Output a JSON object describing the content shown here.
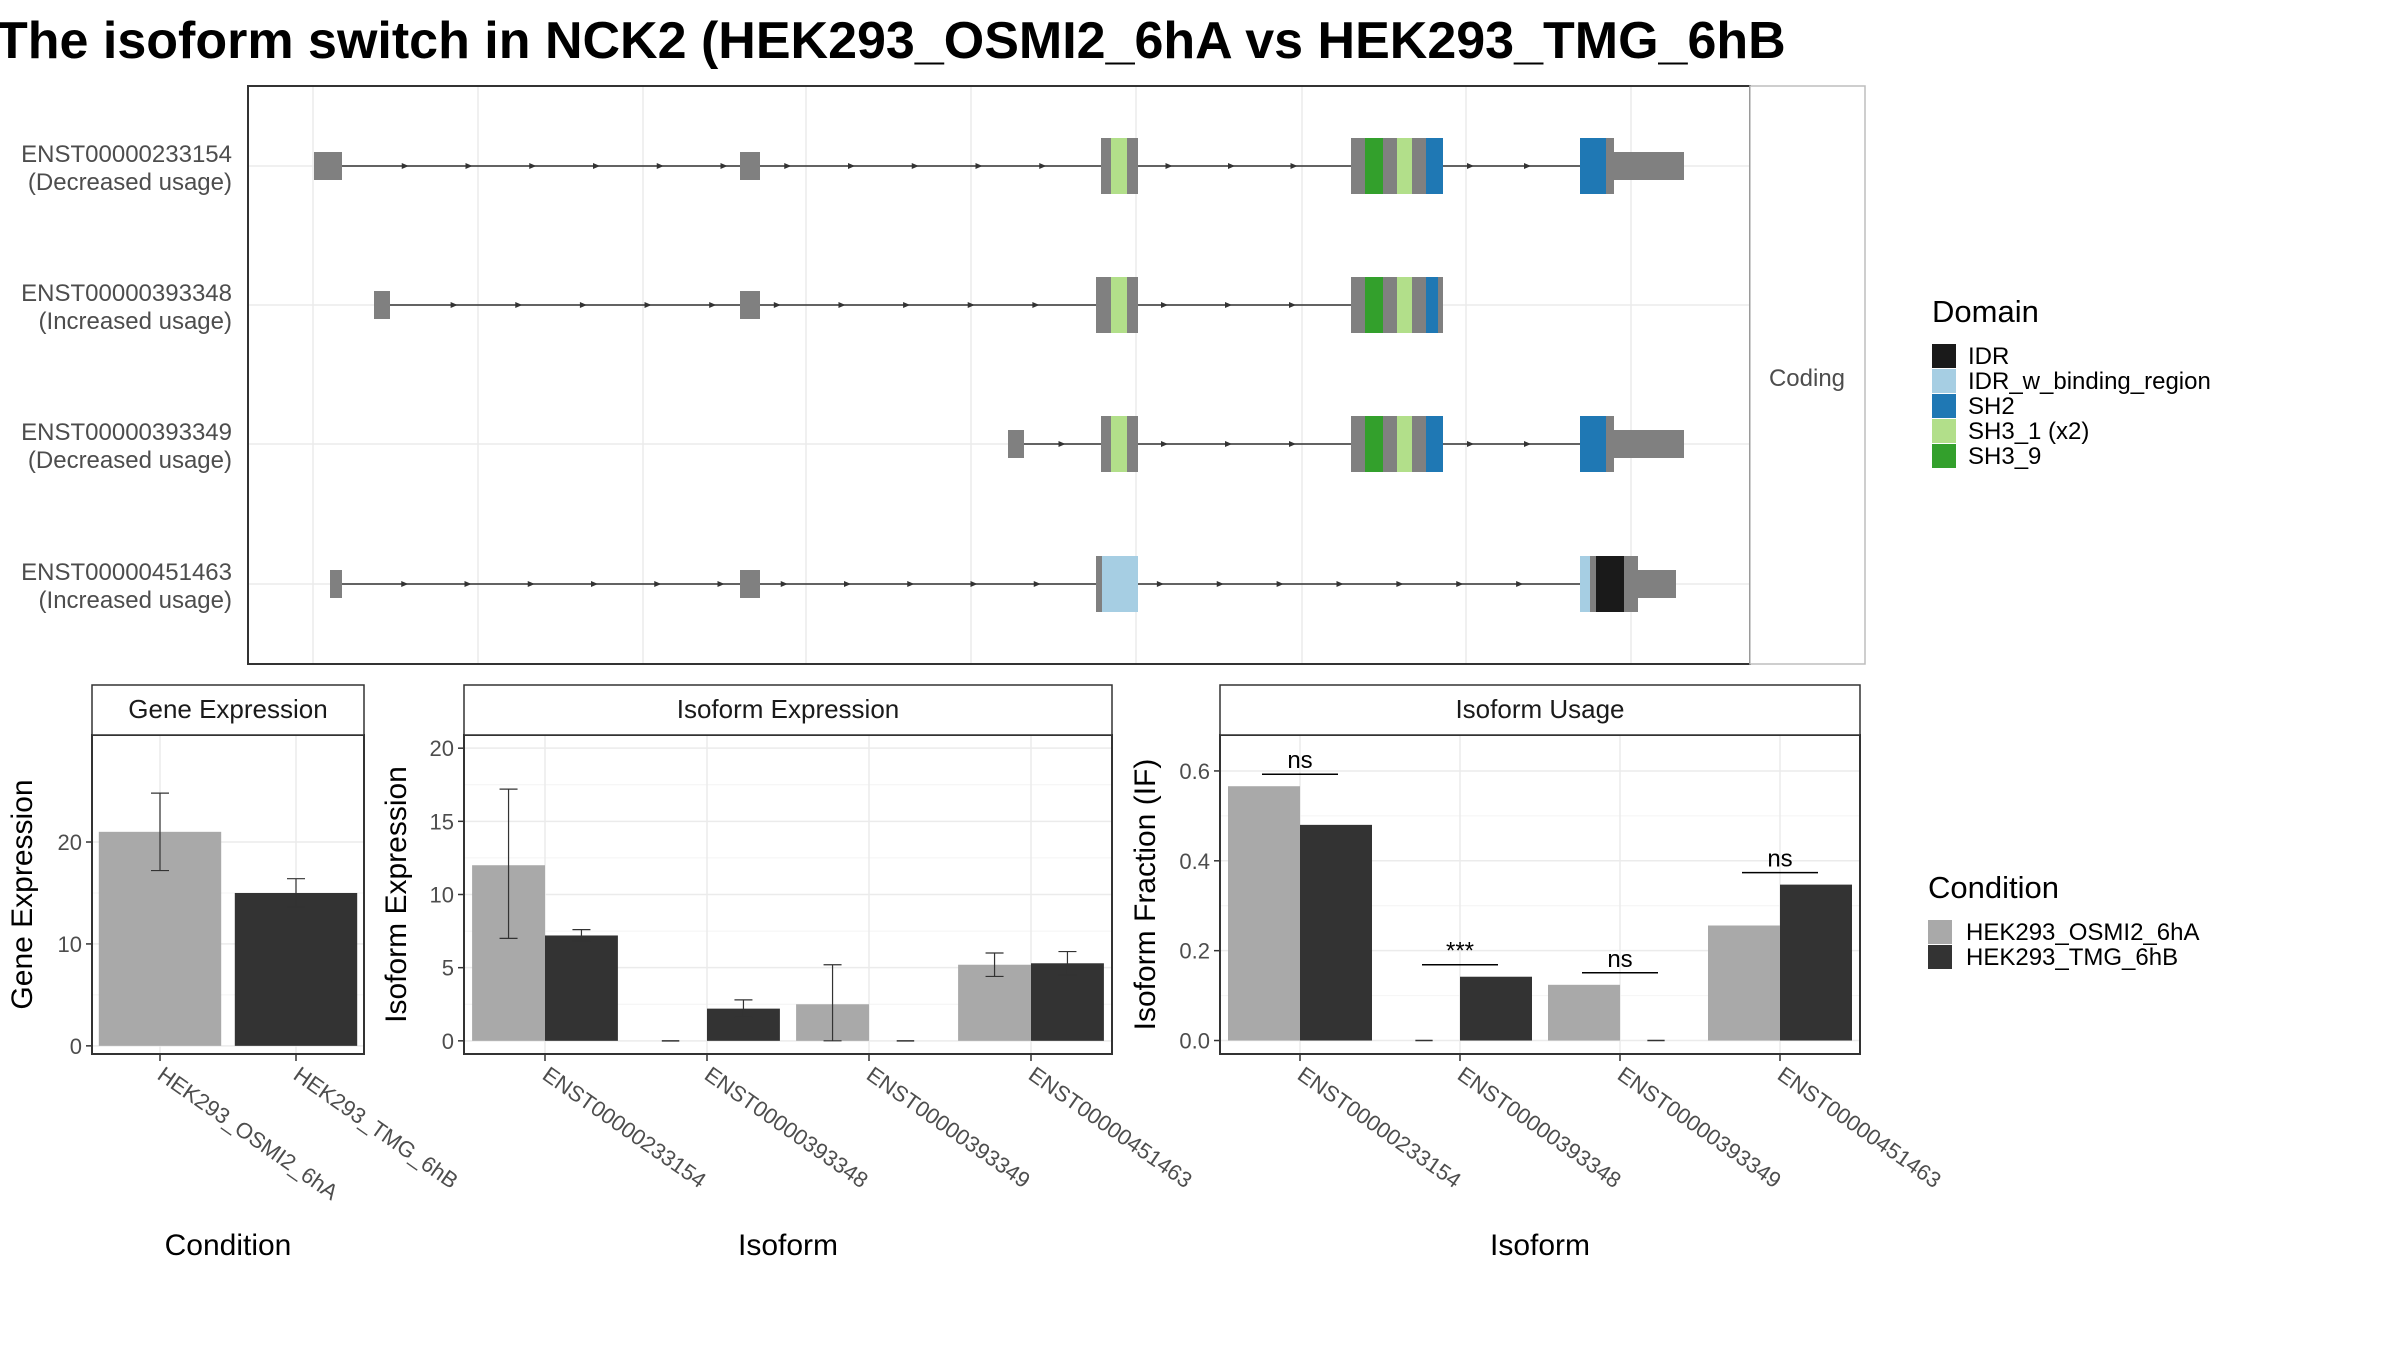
{
  "title": "The isoform switch in NCK2 (HEK293_OSMI2_6hA vs HEK293_TMG_6hB",
  "colors": {
    "exon": "#808080",
    "grid": "#ebebeb",
    "panel_border": "#333333",
    "strip_border": "#bdbdbd",
    "cond_a": "#a9a9a9",
    "cond_b": "#333333",
    "IDR": "#1a1a1a",
    "IDR_w_binding_region": "#a6cee3",
    "SH2": "#1f78b4",
    "SH3_1": "#b2df8a",
    "SH3_9": "#33a02c"
  },
  "structure": {
    "facet_label": "Coding",
    "transcripts": [
      {
        "id": "ENST00000233154",
        "usage": "(Decreased usage)"
      },
      {
        "id": "ENST00000393348",
        "usage": "(Increased usage)"
      },
      {
        "id": "ENST00000393349",
        "usage": "(Decreased usage)"
      },
      {
        "id": "ENST00000451463",
        "usage": "(Increased usage)"
      }
    ]
  },
  "domain_legend": {
    "title": "Domain",
    "items": [
      {
        "label": "IDR",
        "color_key": "IDR"
      },
      {
        "label": "IDR_w_binding_region",
        "color_key": "IDR_w_binding_region"
      },
      {
        "label": "SH2",
        "color_key": "SH2"
      },
      {
        "label": "SH3_1 (x2)",
        "color_key": "SH3_1"
      },
      {
        "label": "SH3_9",
        "color_key": "SH3_9"
      }
    ]
  },
  "condition_legend": {
    "title": "Condition",
    "items": [
      "HEK293_OSMI2_6hA",
      "HEK293_TMG_6hB"
    ]
  },
  "chart_data": [
    {
      "type": "bar",
      "title": "Gene Expression",
      "xlabel": "Condition",
      "ylabel": "Gene Expression",
      "categories": [
        "HEK293_OSMI2_6hA",
        "HEK293_TMG_6hB"
      ],
      "values": [
        21.0,
        15.0
      ],
      "error_low": [
        17.2,
        13.6
      ],
      "error_high": [
        24.8,
        16.4
      ],
      "yticks": [
        0,
        10,
        20
      ],
      "ylim": [
        -0.8,
        30.5
      ]
    },
    {
      "type": "bar",
      "title": "Isoform Expression",
      "xlabel": "Isoform",
      "ylabel": "Isoform Expression",
      "categories": [
        "ENST00000233154",
        "ENST00000393348",
        "ENST00000393349",
        "ENST00000451463"
      ],
      "series": [
        {
          "name": "HEK293_OSMI2_6hA",
          "values": [
            12.0,
            0.0,
            2.5,
            5.2
          ],
          "error_low": [
            7.0,
            0.0,
            0.0,
            4.4
          ],
          "error_high": [
            17.2,
            0.0,
            5.2,
            6.0
          ]
        },
        {
          "name": "HEK293_TMG_6hB",
          "values": [
            7.2,
            2.2,
            0.0,
            5.3
          ],
          "error_low": [
            6.8,
            1.6,
            0.0,
            4.5
          ],
          "error_high": [
            7.6,
            2.8,
            0.0,
            6.1
          ]
        }
      ],
      "yticks": [
        0,
        5,
        10,
        15,
        20
      ],
      "ylim": [
        -0.9,
        20.9
      ]
    },
    {
      "type": "bar",
      "title": "Isoform Usage",
      "xlabel": "Isoform",
      "ylabel": "Isoform Fraction (IF)",
      "categories": [
        "ENST00000233154",
        "ENST00000393348",
        "ENST00000393349",
        "ENST00000451463"
      ],
      "series": [
        {
          "name": "HEK293_OSMI2_6hA",
          "values": [
            0.566,
            0.0,
            0.124,
            0.256
          ]
        },
        {
          "name": "HEK293_TMG_6hB",
          "values": [
            0.48,
            0.142,
            0.0,
            0.347
          ]
        }
      ],
      "significance": [
        "ns",
        "***",
        "ns",
        "ns"
      ],
      "yticks": [
        0.0,
        0.2,
        0.4,
        0.6
      ],
      "ytick_labels": [
        "0.0",
        "0.2",
        "0.4",
        "0.6"
      ],
      "ylim": [
        -0.03,
        0.68
      ]
    }
  ]
}
